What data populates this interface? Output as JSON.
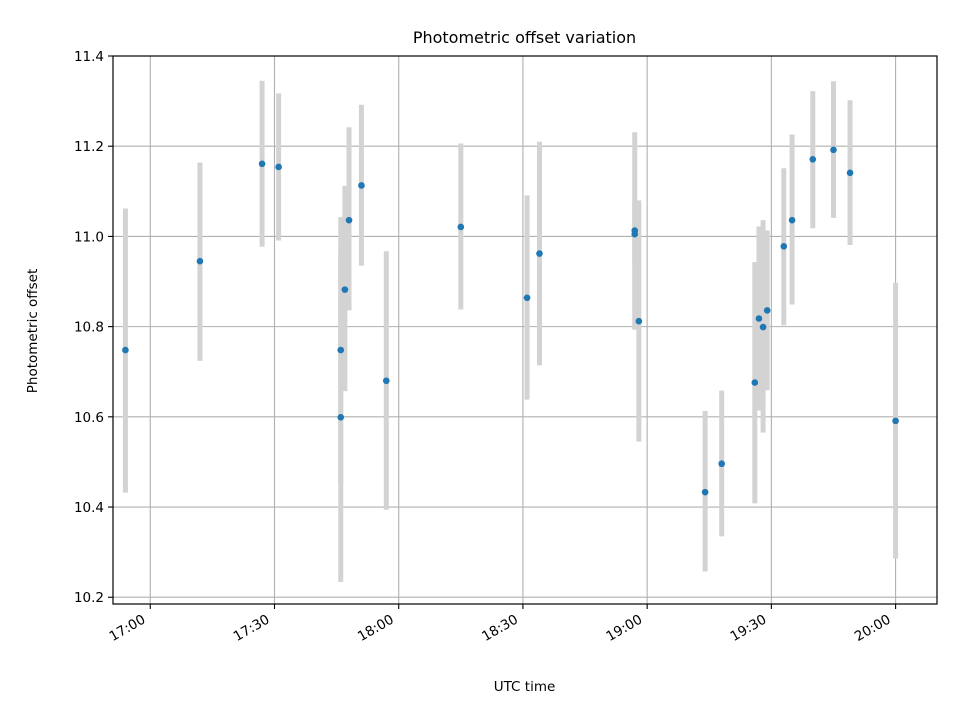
{
  "chart_data": {
    "type": "scatter",
    "title": "Photometric offset variation",
    "xlabel": "UTC time",
    "ylabel": "Photometric offset",
    "xlim": [
      "16:51",
      "20:10"
    ],
    "ylim": [
      10.185,
      11.4
    ],
    "x_ticks": [
      "17:00",
      "17:30",
      "18:00",
      "18:30",
      "19:00",
      "19:30",
      "20:00"
    ],
    "y_ticks": [
      "10.2",
      "10.4",
      "10.6",
      "10.8",
      "11.0",
      "11.2",
      "11.4"
    ],
    "grid": true,
    "colors": {
      "marker": "#1f77b4",
      "errorbar": "#d3d3d3",
      "grid": "#b0b0b0"
    },
    "series": [
      {
        "points": [
          {
            "time": "16:54",
            "y": 10.748,
            "lo": 10.432,
            "hi": 11.062
          },
          {
            "time": "17:12",
            "y": 10.945,
            "lo": 10.724,
            "hi": 11.164
          },
          {
            "time": "17:27",
            "y": 11.161,
            "lo": 10.977,
            "hi": 11.345
          },
          {
            "time": "17:31",
            "y": 11.154,
            "lo": 10.991,
            "hi": 11.317
          },
          {
            "time": "17:46",
            "y": 10.748,
            "lo": 10.45,
            "hi": 11.043
          },
          {
            "time": "17:46",
            "y": 10.599,
            "lo": 10.234,
            "hi": 10.965
          },
          {
            "time": "17:47",
            "y": 10.882,
            "lo": 10.657,
            "hi": 11.112
          },
          {
            "time": "17:48",
            "y": 11.036,
            "lo": 10.836,
            "hi": 11.242
          },
          {
            "time": "17:51",
            "y": 11.113,
            "lo": 10.935,
            "hi": 11.292
          },
          {
            "time": "17:57",
            "y": 10.68,
            "lo": 10.394,
            "hi": 10.967
          },
          {
            "time": "18:15",
            "y": 11.021,
            "lo": 10.838,
            "hi": 11.206
          },
          {
            "time": "18:31",
            "y": 10.864,
            "lo": 10.638,
            "hi": 11.091
          },
          {
            "time": "18:34",
            "y": 10.962,
            "lo": 10.714,
            "hi": 11.21
          },
          {
            "time": "18:57",
            "y": 11.013,
            "lo": 10.793,
            "hi": 11.231
          },
          {
            "time": "18:57",
            "y": 11.005,
            "lo": 10.928,
            "hi": 11.08
          },
          {
            "time": "18:58",
            "y": 10.812,
            "lo": 10.545,
            "hi": 11.08
          },
          {
            "time": "19:14",
            "y": 10.433,
            "lo": 10.257,
            "hi": 10.613
          },
          {
            "time": "19:18",
            "y": 10.496,
            "lo": 10.335,
            "hi": 10.658
          },
          {
            "time": "19:26",
            "y": 10.676,
            "lo": 10.408,
            "hi": 10.943
          },
          {
            "time": "19:27",
            "y": 10.818,
            "lo": 10.614,
            "hi": 11.022
          },
          {
            "time": "19:28",
            "y": 10.799,
            "lo": 10.565,
            "hi": 11.036
          },
          {
            "time": "19:29",
            "y": 10.836,
            "lo": 10.659,
            "hi": 11.013
          },
          {
            "time": "19:33",
            "y": 10.978,
            "lo": 10.803,
            "hi": 11.151
          },
          {
            "time": "19:35",
            "y": 11.036,
            "lo": 10.849,
            "hi": 11.226
          },
          {
            "time": "19:40",
            "y": 11.171,
            "lo": 11.018,
            "hi": 11.322
          },
          {
            "time": "19:45",
            "y": 11.192,
            "lo": 11.041,
            "hi": 11.344
          },
          {
            "time": "19:49",
            "y": 11.141,
            "lo": 10.981,
            "hi": 11.302
          },
          {
            "time": "20:00",
            "y": 10.591,
            "lo": 10.286,
            "hi": 10.897
          }
        ]
      }
    ]
  }
}
